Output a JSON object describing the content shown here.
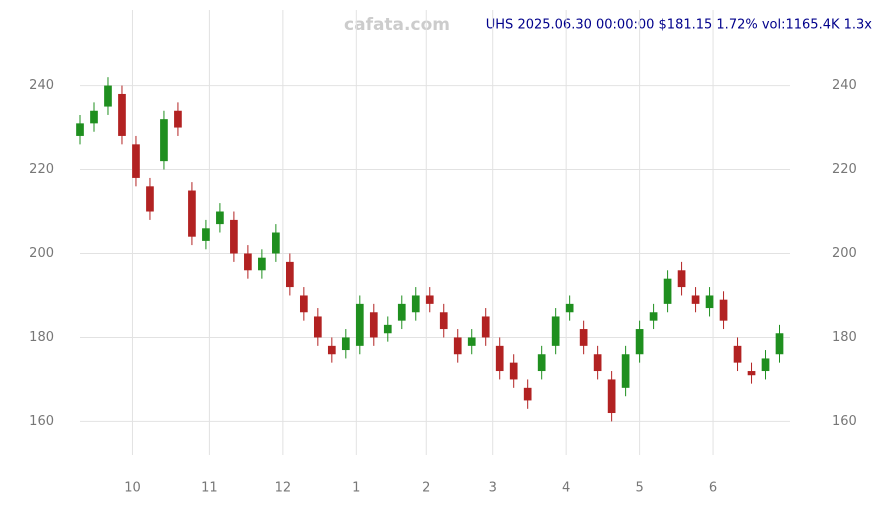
{
  "chart_data": {
    "type": "candlestick",
    "title": "UHS 2025.06.30 00:00:00 $181.15 1.72% vol:1165.4K 1.3x",
    "watermark": "cafata.com",
    "x": [
      0,
      4,
      8,
      12,
      16,
      20,
      24,
      28,
      32,
      36,
      40,
      44,
      48,
      52,
      56,
      60,
      64,
      68,
      72,
      76,
      80,
      84,
      88,
      92,
      96,
      100,
      104,
      108,
      112,
      116,
      120,
      124,
      128,
      132,
      136,
      140,
      144,
      148,
      152,
      156,
      160,
      164,
      168,
      172,
      176,
      180,
      184,
      188,
      192,
      196,
      200
    ],
    "open": [
      228,
      231,
      235,
      238,
      226,
      216,
      222,
      234,
      215,
      203,
      207,
      208,
      200,
      196,
      200,
      198,
      190,
      185,
      178,
      177,
      178,
      186,
      181,
      184,
      186,
      190,
      186,
      180,
      178,
      185,
      178,
      174,
      168,
      172,
      178,
      186,
      182,
      176,
      170,
      168,
      176,
      184,
      188,
      196,
      190,
      187,
      189,
      178,
      172,
      172,
      176
    ],
    "high": [
      233,
      236,
      242,
      240,
      228,
      218,
      234,
      236,
      217,
      208,
      212,
      210,
      202,
      201,
      207,
      200,
      192,
      187,
      180,
      182,
      190,
      188,
      185,
      190,
      192,
      192,
      188,
      182,
      182,
      187,
      180,
      176,
      170,
      178,
      187,
      190,
      184,
      178,
      172,
      178,
      184,
      188,
      196,
      198,
      192,
      192,
      191,
      180,
      174,
      177,
      183
    ],
    "low": [
      226,
      229,
      233,
      226,
      216,
      208,
      220,
      228,
      202,
      201,
      205,
      198,
      194,
      194,
      198,
      190,
      184,
      178,
      174,
      175,
      176,
      178,
      179,
      182,
      184,
      186,
      180,
      174,
      176,
      178,
      170,
      168,
      163,
      170,
      176,
      184,
      176,
      170,
      160,
      166,
      174,
      182,
      186,
      190,
      186,
      185,
      182,
      172,
      169,
      170,
      174
    ],
    "close": [
      231,
      234,
      240,
      228,
      218,
      210,
      232,
      230,
      204,
      206,
      210,
      200,
      196,
      199,
      205,
      192,
      186,
      180,
      176,
      180,
      188,
      180,
      183,
      188,
      190,
      188,
      182,
      176,
      180,
      180,
      172,
      170,
      165,
      176,
      185,
      188,
      178,
      172,
      162,
      176,
      182,
      186,
      194,
      192,
      188,
      190,
      184,
      174,
      171,
      175,
      181
    ],
    "xlim": [
      0,
      203
    ],
    "ylim": [
      152,
      258
    ],
    "yticks": [
      160,
      180,
      200,
      220,
      240
    ],
    "xticks": [
      {
        "value": 15,
        "label": "10"
      },
      {
        "value": 37,
        "label": "11"
      },
      {
        "value": 58,
        "label": "12"
      },
      {
        "value": 79,
        "label": "1"
      },
      {
        "value": 99,
        "label": "2"
      },
      {
        "value": 118,
        "label": "3"
      },
      {
        "value": 139,
        "label": "4"
      },
      {
        "value": 160,
        "label": "5"
      },
      {
        "value": 181,
        "label": "6"
      }
    ],
    "grid": true,
    "up_color": "#1f8f1f",
    "down_color": "#b22222"
  }
}
